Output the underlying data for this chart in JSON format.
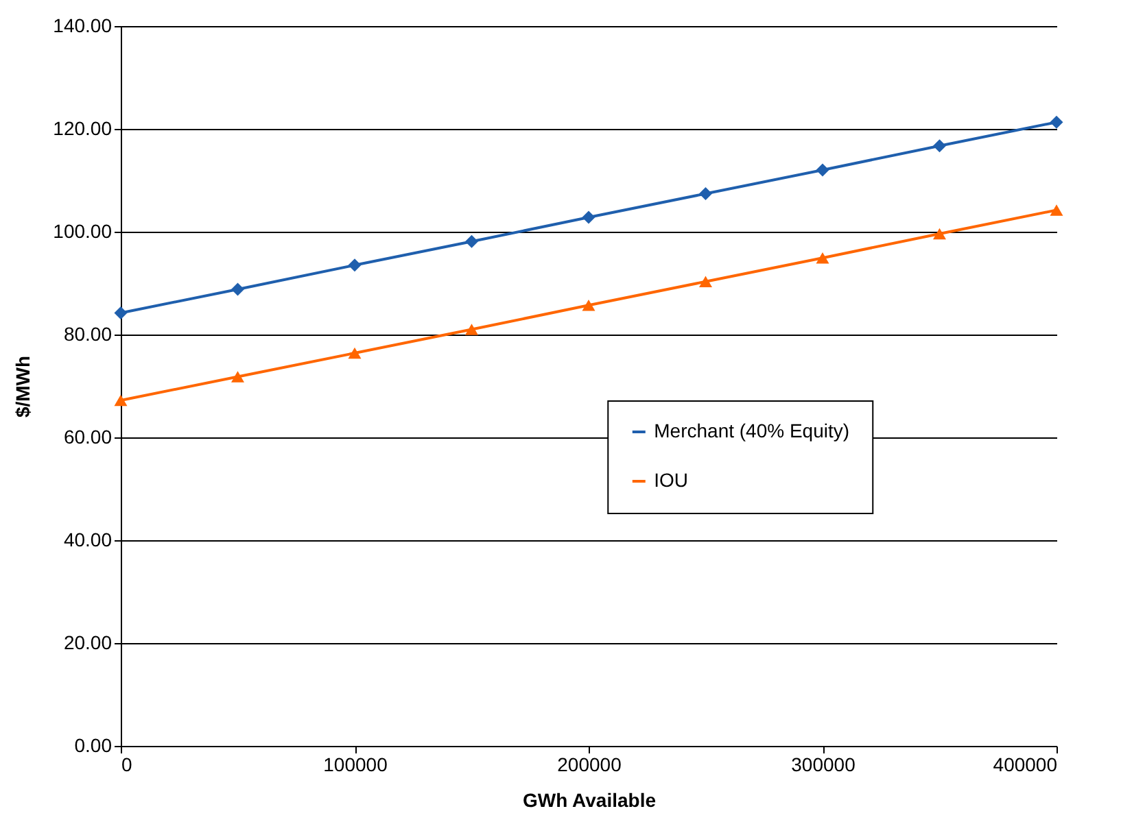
{
  "chart_data": {
    "type": "line",
    "xlabel": "GWh Available",
    "ylabel": "$/MWh",
    "x": [
      0,
      50000,
      100000,
      150000,
      200000,
      250000,
      300000,
      350000,
      400000
    ],
    "series": [
      {
        "name": "Merchant (40% Equity)",
        "color": "#1f5fad",
        "marker": "diamond",
        "values": [
          84.2,
          88.8,
          93.5,
          98.1,
          102.8,
          107.4,
          112.0,
          116.7,
          121.3
        ]
      },
      {
        "name": "IOU",
        "color": "#ff6600",
        "marker": "triangle",
        "values": [
          67.2,
          71.8,
          76.4,
          81.0,
          85.7,
          90.3,
          94.9,
          99.6,
          104.2
        ]
      }
    ],
    "xlim": [
      0,
      400000
    ],
    "xticks": [
      0,
      100000,
      200000,
      300000,
      400000
    ],
    "ylim": [
      0,
      140
    ],
    "yticks": [
      {
        "value": 0,
        "label": "0.00"
      },
      {
        "value": 20,
        "label": "20.00"
      },
      {
        "value": 40,
        "label": "40.00"
      },
      {
        "value": 60,
        "label": "60.00"
      },
      {
        "value": 80,
        "label": "80.00"
      },
      {
        "value": 100,
        "label": "100.00"
      },
      {
        "value": 120,
        "label": "120.00"
      },
      {
        "value": 140,
        "label": "140.00"
      }
    ],
    "grid": "y",
    "legend": "right",
    "line_style": "solid"
  }
}
